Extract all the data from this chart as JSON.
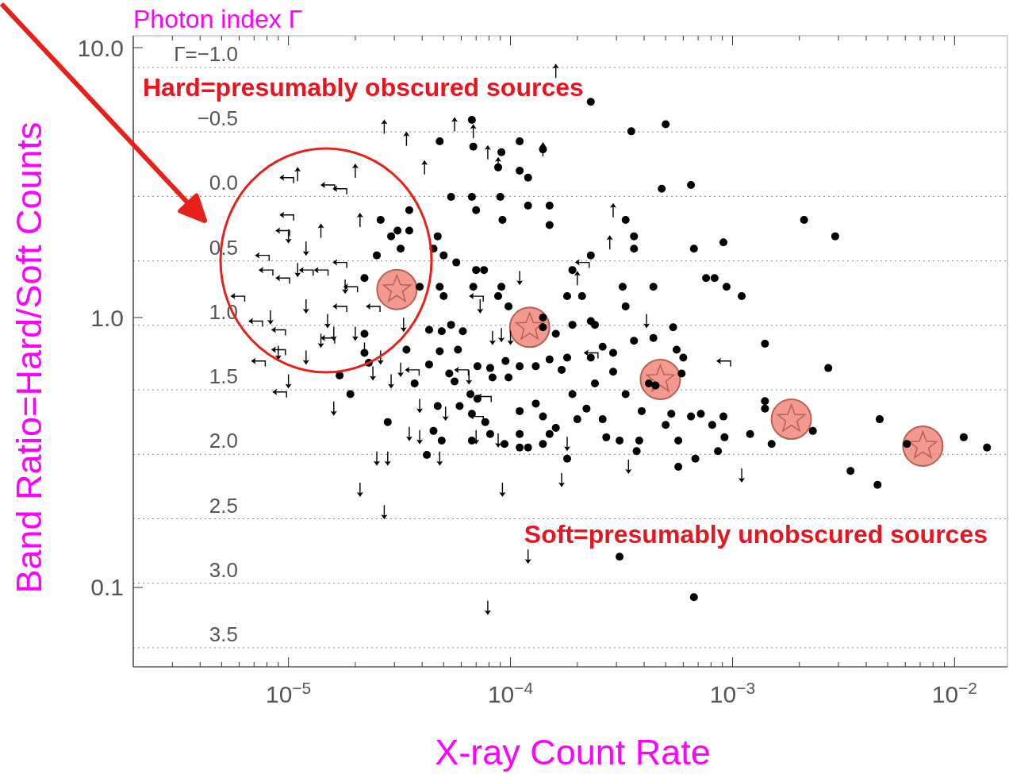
{
  "chart_data": {
    "type": "scatter",
    "y2label": "Photon index Γ",
    "xlabel": "X-ray Count Rate",
    "ylabel": "Band Ratio=Hard/Soft Counts",
    "annotations": [
      "Hard=presumably obscured sources",
      "Soft=presumably unobscured sources"
    ],
    "log": "xy",
    "grid": true,
    "xlim": [
      2e-06,
      0.0173
    ],
    "ylim": [
      0.0508,
      11.07
    ],
    "y2lim": [
      3.648,
      -1.246
    ],
    "xticks": [
      {
        "value": 3e-06,
        "label": null
      },
      {
        "value": 4e-06,
        "label": null
      },
      {
        "value": 5e-06,
        "label": null
      },
      {
        "value": 6e-06,
        "label": null
      },
      {
        "value": 7e-06,
        "label": null
      },
      {
        "value": 8e-06,
        "label": null
      },
      {
        "value": 9e-06,
        "label": null
      },
      {
        "value": 1e-05,
        "label": "10$^{−5}$"
      },
      {
        "value": 2e-05,
        "label": null
      },
      {
        "value": 3e-05,
        "label": null
      },
      {
        "value": 4e-05,
        "label": null
      },
      {
        "value": 5e-05,
        "label": null
      },
      {
        "value": 6e-05,
        "label": null
      },
      {
        "value": 7e-05,
        "label": null
      },
      {
        "value": 8e-05,
        "label": null
      },
      {
        "value": 9e-05,
        "label": null
      },
      {
        "value": 0.0001,
        "label": "10$^{−4}$"
      },
      {
        "value": 0.0002,
        "label": null
      },
      {
        "value": 0.0003,
        "label": null
      },
      {
        "value": 0.0004,
        "label": null
      },
      {
        "value": 0.0005,
        "label": null
      },
      {
        "value": 0.0006,
        "label": null
      },
      {
        "value": 0.0007,
        "label": null
      },
      {
        "value": 0.0008,
        "label": null
      },
      {
        "value": 0.0009,
        "label": null
      },
      {
        "value": 0.001,
        "label": "10$^{−3}$"
      },
      {
        "value": 0.002,
        "label": null
      },
      {
        "value": 0.003,
        "label": null
      },
      {
        "value": 0.004,
        "label": null
      },
      {
        "value": 0.005,
        "label": null
      },
      {
        "value": 0.006,
        "label": null
      },
      {
        "value": 0.007,
        "label": null
      },
      {
        "value": 0.008,
        "label": null
      },
      {
        "value": 0.009,
        "label": null
      },
      {
        "value": 0.01,
        "label": "10$^{−2}$"
      }
    ],
    "yticks": [
      {
        "value": 0.1,
        "label": "0.1"
      },
      {
        "value": 1,
        "label": "1.0"
      },
      {
        "value": 10,
        "label": "10.0"
      }
    ],
    "y2ticks": [
      {
        "value": -1.0,
        "label": "Γ=−1.0"
      },
      {
        "value": -0.5,
        "label": "−0.5"
      },
      {
        "value": 0.0,
        "label": "0.0"
      },
      {
        "value": 0.5,
        "label": "0.5"
      },
      {
        "value": 1.0,
        "label": "1.0"
      },
      {
        "value": 1.5,
        "label": "1.5"
      },
      {
        "value": 2.0,
        "label": "2.0"
      },
      {
        "value": 2.5,
        "label": "2.5"
      },
      {
        "value": 3.0,
        "label": "3.0"
      },
      {
        "value": 3.5,
        "label": "3.5"
      }
    ],
    "series": [
      {
        "color": "#f08070",
        "marker": "circle",
        "x": [
          3.08e-05,
          0.000122,
          0.000473,
          0.00184,
          0.0072
        ],
        "values": [
          1.27,
          0.92,
          0.59,
          0.42,
          0.334
        ]
      },
      {
        "color": "#000000",
        "marker": "circle",
        "x": [
          6.7e-05,
          4.8e-05,
          6.8e-05,
          0.00011,
          9.1e-05,
          0.00035,
          0.0005,
          0.00023,
          8.8e-05,
          0.00011,
          0.00014,
          0.00012,
          0.00048,
          0.00065,
          5.4e-05,
          6.7e-05,
          9e-05,
          0.00012,
          0.00015,
          7e-05,
          3.5e-05,
          2.6e-05,
          9.2e-05,
          0.00015,
          3.1e-05,
          2.9e-05,
          3.5e-05,
          4.7e-05,
          4.5e-05,
          5e-05,
          0.00033,
          0.00036,
          0.00091,
          0.0021,
          0.0029,
          0.00067,
          0.00023,
          0.00036,
          5.7e-05,
          7e-05,
          7.6e-05,
          6.8e-05,
          3.2e-05,
          2.5e-05,
          2.2e-05,
          3.9e-05,
          4.8e-05,
          5e-05,
          8.8e-05,
          9.8e-05,
          9.1e-05,
          0.00019,
          0.00021,
          0.00032,
          0.00044,
          0.00076,
          0.00083,
          0.00094,
          0.0011,
          0.00014,
          0.00018,
          0.00014,
          0.00016,
          0.00023,
          0.00024,
          0.00019,
          0.00033,
          0.00036,
          0.00054,
          0.00044,
          0.00026,
          0.00029,
          0.00023,
          0.00018,
          0.00017,
          0.00015,
          0.00013,
          0.00011,
          9.5e-05,
          9.8e-05,
          8.1e-05,
          7.1e-05,
          5.4e-05,
          6.1e-05,
          5.8e-05,
          4.9e-05,
          4.3e-05,
          3.4e-05,
          4.3e-05,
          4.8e-05,
          5.3e-05,
          5.6e-05,
          4.7e-05,
          6.6e-05,
          5.9e-05,
          7.1e-05,
          7.7e-05,
          8.1e-05,
          6.7e-05,
          9.4e-05,
          0.00011,
          0.00012,
          0.00015,
          0.00016,
          0.00014,
          0.00011,
          0.00013,
          0.0002,
          0.00026,
          0.00022,
          0.00019,
          0.00024,
          0.00029,
          0.00033,
          0.00042,
          0.0006,
          0.00056,
          0.00059,
          0.00039,
          0.00053,
          0.0005,
          0.00057,
          0.00065,
          0.00072,
          0.00081,
          0.00091,
          0.00092,
          0.00086,
          0.00068,
          0.00057,
          0.00037,
          0.00038,
          0.00031,
          0.00027,
          0.00018,
          0.00014,
          4.2e-05,
          4.5e-05,
          2.8e-05,
          2.2e-05,
          2.2e-05,
          2.3e-05,
          1.7e-05,
          1.9e-05,
          3.7e-05,
          0.0014,
          0.0014,
          0.0012,
          0.0015,
          0.0023,
          0.0034,
          0.0046,
          0.0045,
          0.0061,
          0.011,
          0.014,
          0.0014,
          0.0027,
          0.00031,
          0.00067,
          8.3e-05,
          0.00045,
          0.00011,
          4.9e-05,
          6.7e-05
        ],
        "values": [
          5.4,
          4.5,
          4.3,
          4.5,
          4.1,
          4.9,
          5.2,
          6.3,
          3.6,
          3.5,
          4.2,
          3.3,
          3.0,
          3.1,
          2.8,
          2.8,
          2.8,
          2.6,
          2.6,
          2.5,
          2.5,
          2.3,
          2.3,
          2.2,
          2.1,
          2.0,
          2.1,
          2.0,
          1.8,
          1.7,
          2.3,
          2.0,
          1.9,
          2.3,
          2.0,
          1.8,
          1.7,
          1.8,
          1.6,
          1.5,
          1.5,
          1.3,
          1.8,
          1.7,
          1.4,
          1.3,
          1.3,
          1.2,
          1.2,
          1.1,
          1.3,
          1.5,
          1.2,
          1.3,
          1.3,
          1.4,
          1.4,
          1.3,
          1.2,
          1.0,
          1.2,
          0.92,
          0.87,
          0.97,
          0.94,
          0.94,
          1.1,
          0.82,
          0.92,
          0.84,
          0.78,
          0.74,
          0.71,
          0.71,
          0.64,
          0.7,
          0.66,
          0.66,
          0.69,
          0.6,
          0.65,
          0.66,
          0.94,
          0.89,
          0.76,
          0.89,
          0.9,
          0.76,
          0.67,
          0.75,
          0.62,
          0.58,
          0.47,
          0.52,
          0.47,
          0.5,
          0.41,
          0.37,
          0.35,
          0.34,
          0.37,
          0.33,
          0.37,
          0.39,
          0.43,
          0.45,
          0.48,
          0.42,
          0.42,
          0.46,
          0.52,
          0.57,
          0.63,
          0.52,
          0.57,
          0.71,
          0.76,
          0.62,
          0.45,
          0.44,
          0.4,
          0.35,
          0.43,
          0.44,
          0.4,
          0.43,
          0.36,
          0.32,
          0.3,
          0.28,
          0.32,
          0.35,
          0.35,
          0.36,
          0.3,
          0.34,
          0.31,
          0.38,
          0.41,
          0.87,
          0.74,
          0.68,
          0.61,
          0.52,
          0.57,
          0.49,
          0.46,
          0.37,
          0.34,
          0.38,
          0.27,
          0.42,
          0.24,
          0.34,
          0.36,
          0.33,
          0.8,
          0.65,
          0.13,
          0.092,
          0.6,
          0.56,
          0.33,
          0.35,
          0.44
        ]
      },
      {
        "color": "#000000",
        "x": [
          1e-05,
          1.2e-05,
          1.1e-05,
          1.2e-05,
          1.5e-05,
          1.8e-05,
          2e-05,
          2.2e-05,
          2.6e-05,
          2.4e-05,
          2.9e-05,
          3.2e-05,
          1e-05,
          1.2e-05,
          1.4e-05,
          1.6e-05,
          8.3e-06,
          9e-06,
          2.1e-05,
          2.7e-05,
          2.5e-05,
          2.8e-05,
          3.5e-05,
          3.9e-05,
          4.8e-05,
          9.2e-05,
          0.00012,
          7.9e-05,
          0.00017,
          0.00018,
          8.8e-05,
          7e-05,
          8.3e-05,
          9.1e-05,
          0.0001,
          7.3e-05,
          0.00011,
          0.0011,
          0.00041,
          0.00034,
          1.6e-05,
          3.3e-05,
          3.9e-05,
          5.1e-05,
          6.5e-05
        ],
        "values": [
          2.0,
          1.8,
          1.5,
          1.1,
          0.97,
          1.3,
          0.87,
          0.76,
          0.71,
          0.62,
          0.58,
          0.64,
          0.58,
          0.71,
          0.82,
          0.87,
          1.0,
          0.74,
          0.23,
          0.19,
          0.3,
          0.3,
          0.37,
          0.36,
          0.3,
          0.23,
          0.13,
          0.084,
          0.25,
          0.34,
          0.35,
          0.36,
          0.84,
          0.86,
          0.84,
          1.1,
          1.4,
          0.26,
          0.97,
          0.28,
          0.46,
          0.94,
          0.47,
          0.44,
          0.6
        ]
      },
      {
        "color": "#000000",
        "x": [
          2e-05,
          1.4e-05,
          2.1e-05,
          5.6e-05,
          3.4e-05,
          4.1e-05,
          2.7e-05,
          6.8e-05,
          8.8e-05,
          0.00014,
          0.00016,
          0.00029,
          0.00028,
          0.0002,
          1.1e-05,
          7.9e-05
        ],
        "values": [
          3.5,
          2.1,
          2.3,
          5.2,
          4.6,
          3.6,
          5.1,
          4.9,
          3.7,
          4.2,
          8.2,
          2.5,
          1.9,
          1.4,
          3.4,
          4.1
        ]
      },
      {
        "color": "#000000",
        "x": [
          9.8e-06,
          1.5e-05,
          1.7e-05,
          9.8e-06,
          9.4e-06,
          7.6e-06,
          7.9e-06,
          9.4e-06,
          5.9e-06,
          7.1e-06,
          9e-06,
          9e-06,
          7.3e-06,
          9.1e-06,
          1.4e-05,
          1.7e-05,
          1.2e-05,
          1.7e-05,
          1.5e-05,
          1.9e-05,
          2.4e-05,
          3.6e-05,
          6e-05,
          7e-05,
          7.6e-05,
          7e-05,
          0.00023,
          0.00091,
          0.00021
        ],
        "values": [
          3.3,
          3.1,
          3.0,
          2.4,
          2.1,
          1.7,
          1.5,
          1.4,
          1.2,
          0.97,
          0.9,
          0.76,
          0.69,
          0.53,
          1.5,
          1.6,
          1.5,
          1.1,
          0.84,
          1.3,
          1.1,
          0.64,
          0.64,
          1.2,
          0.51,
          0.43,
          0.74,
          0.69,
          1.6
        ]
      }
    ]
  }
}
